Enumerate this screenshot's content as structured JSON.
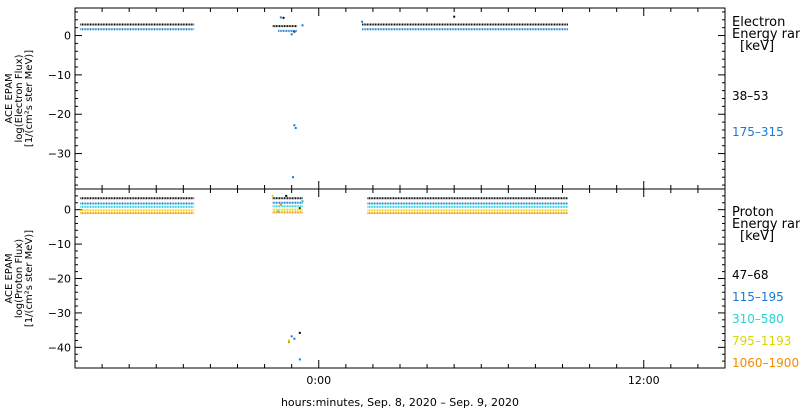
{
  "chart_data": [
    {
      "type": "scatter",
      "title": "",
      "ylabel_lines": [
        "ACE EPAM",
        "log(Electron Flux)",
        "[1/(cm²s ster MeV)]"
      ],
      "yticks": [
        0,
        -10,
        -20,
        -30
      ],
      "ylim": [
        -39,
        7
      ],
      "xlim": [
        -9,
        15
      ],
      "legend": {
        "title_lines": [
          "Electron",
          "Energy ran",
          "[keV]"
        ],
        "placement": "right"
      },
      "series": [
        {
          "name": "38–53",
          "color": "#000000",
          "segments": [
            {
              "x_start": -8.8,
              "x_end": -4.6,
              "y": 2.8
            },
            {
              "x_start": -1.7,
              "x_end": -0.8,
              "y": 2.4
            },
            {
              "x_start": 1.6,
              "x_end": 9.2,
              "y": 2.8
            }
          ],
          "points": [
            {
              "x": -1.3,
              "y": 4.5
            },
            {
              "x": -0.9,
              "y": 1.0
            },
            {
              "x": 5.0,
              "y": 4.8
            }
          ]
        },
        {
          "name": "175–315",
          "color": "#1a7ad4",
          "segments": [
            {
              "x_start": -8.8,
              "x_end": -4.6,
              "y": 1.6
            },
            {
              "x_start": -1.5,
              "x_end": -0.8,
              "y": 1.2
            },
            {
              "x_start": 1.6,
              "x_end": 9.2,
              "y": 1.6
            }
          ],
          "points": [
            {
              "x": -1.4,
              "y": 4.6
            },
            {
              "x": -1.0,
              "y": 0.3
            },
            {
              "x": -0.6,
              "y": 2.6
            },
            {
              "x": 1.6,
              "y": 3.5
            },
            {
              "x": -0.9,
              "y": -22.8
            },
            {
              "x": -0.85,
              "y": -23.5
            },
            {
              "x": -0.95,
              "y": -36.0
            }
          ]
        }
      ]
    },
    {
      "type": "scatter",
      "title": "",
      "ylabel_lines": [
        "ACE EPAM",
        "log(Proton Flux)",
        "[1/(cm²s ster MeV)]"
      ],
      "yticks": [
        0,
        -10,
        -20,
        -30,
        -40
      ],
      "ylim": [
        -46,
        6
      ],
      "xlim": [
        -9,
        15
      ],
      "legend": {
        "title_lines": [
          "Proton",
          "Energy ran",
          "[keV]"
        ],
        "placement": "right"
      },
      "series": [
        {
          "name": "47–68",
          "color": "#000000",
          "segments": [
            {
              "x_start": -8.8,
              "x_end": -4.6,
              "y": 3.3
            },
            {
              "x_start": -1.7,
              "x_end": -0.6,
              "y": 3.3
            },
            {
              "x_start": 1.8,
              "x_end": 9.2,
              "y": 3.3
            }
          ],
          "points": [
            {
              "x": -1.2,
              "y": 4.0
            },
            {
              "x": -0.7,
              "y": 0.4
            },
            {
              "x": -0.7,
              "y": -35.8
            }
          ]
        },
        {
          "name": "115–195",
          "color": "#1a7ad4",
          "segments": [
            {
              "x_start": -8.8,
              "x_end": -4.6,
              "y": 1.8
            },
            {
              "x_start": -1.7,
              "x_end": -0.6,
              "y": 2.0
            },
            {
              "x_start": 1.8,
              "x_end": 9.2,
              "y": 1.8
            }
          ],
          "points": [
            {
              "x": -1.0,
              "y": -36.8
            },
            {
              "x": -0.9,
              "y": -37.5
            },
            {
              "x": -0.7,
              "y": -43.5
            }
          ]
        },
        {
          "name": "310–580",
          "color": "#22d4d4",
          "segments": [
            {
              "x_start": -8.8,
              "x_end": -4.6,
              "y": 0.8
            },
            {
              "x_start": -1.7,
              "x_end": -0.6,
              "y": 1.0
            },
            {
              "x_start": 1.8,
              "x_end": 9.2,
              "y": 0.8
            }
          ],
          "points": [
            {
              "x": -0.6,
              "y": 2.5
            },
            {
              "x": -1.5,
              "y": -0.5
            }
          ]
        },
        {
          "name": "795–1193",
          "color": "#d8d800",
          "segments": [
            {
              "x_start": -8.8,
              "x_end": -4.6,
              "y": -0.2
            },
            {
              "x_start": -1.7,
              "x_end": -0.6,
              "y": 0.0
            },
            {
              "x_start": 1.8,
              "x_end": 9.2,
              "y": -0.2
            }
          ],
          "points": [
            {
              "x": -1.7,
              "y": 4.0
            },
            {
              "x": -1.1,
              "y": -38.0
            }
          ]
        },
        {
          "name": "1060–1900",
          "color": "#f08c00",
          "segments": [
            {
              "x_start": -8.8,
              "x_end": -4.6,
              "y": -1.0
            },
            {
              "x_start": -1.7,
              "x_end": -0.6,
              "y": -0.8
            },
            {
              "x_start": 1.8,
              "x_end": 9.2,
              "y": -1.0
            }
          ],
          "points": [
            {
              "x": -1.4,
              "y": 1.5
            },
            {
              "x": -1.1,
              "y": -38.5
            }
          ]
        }
      ]
    }
  ],
  "xaxis": {
    "tick_values": [
      0,
      12
    ],
    "tick_labels": [
      "0:00",
      "12:00"
    ],
    "minor_every": 1,
    "label": "hours:minutes, Sep.  8, 2020 – Sep.  9, 2020"
  }
}
